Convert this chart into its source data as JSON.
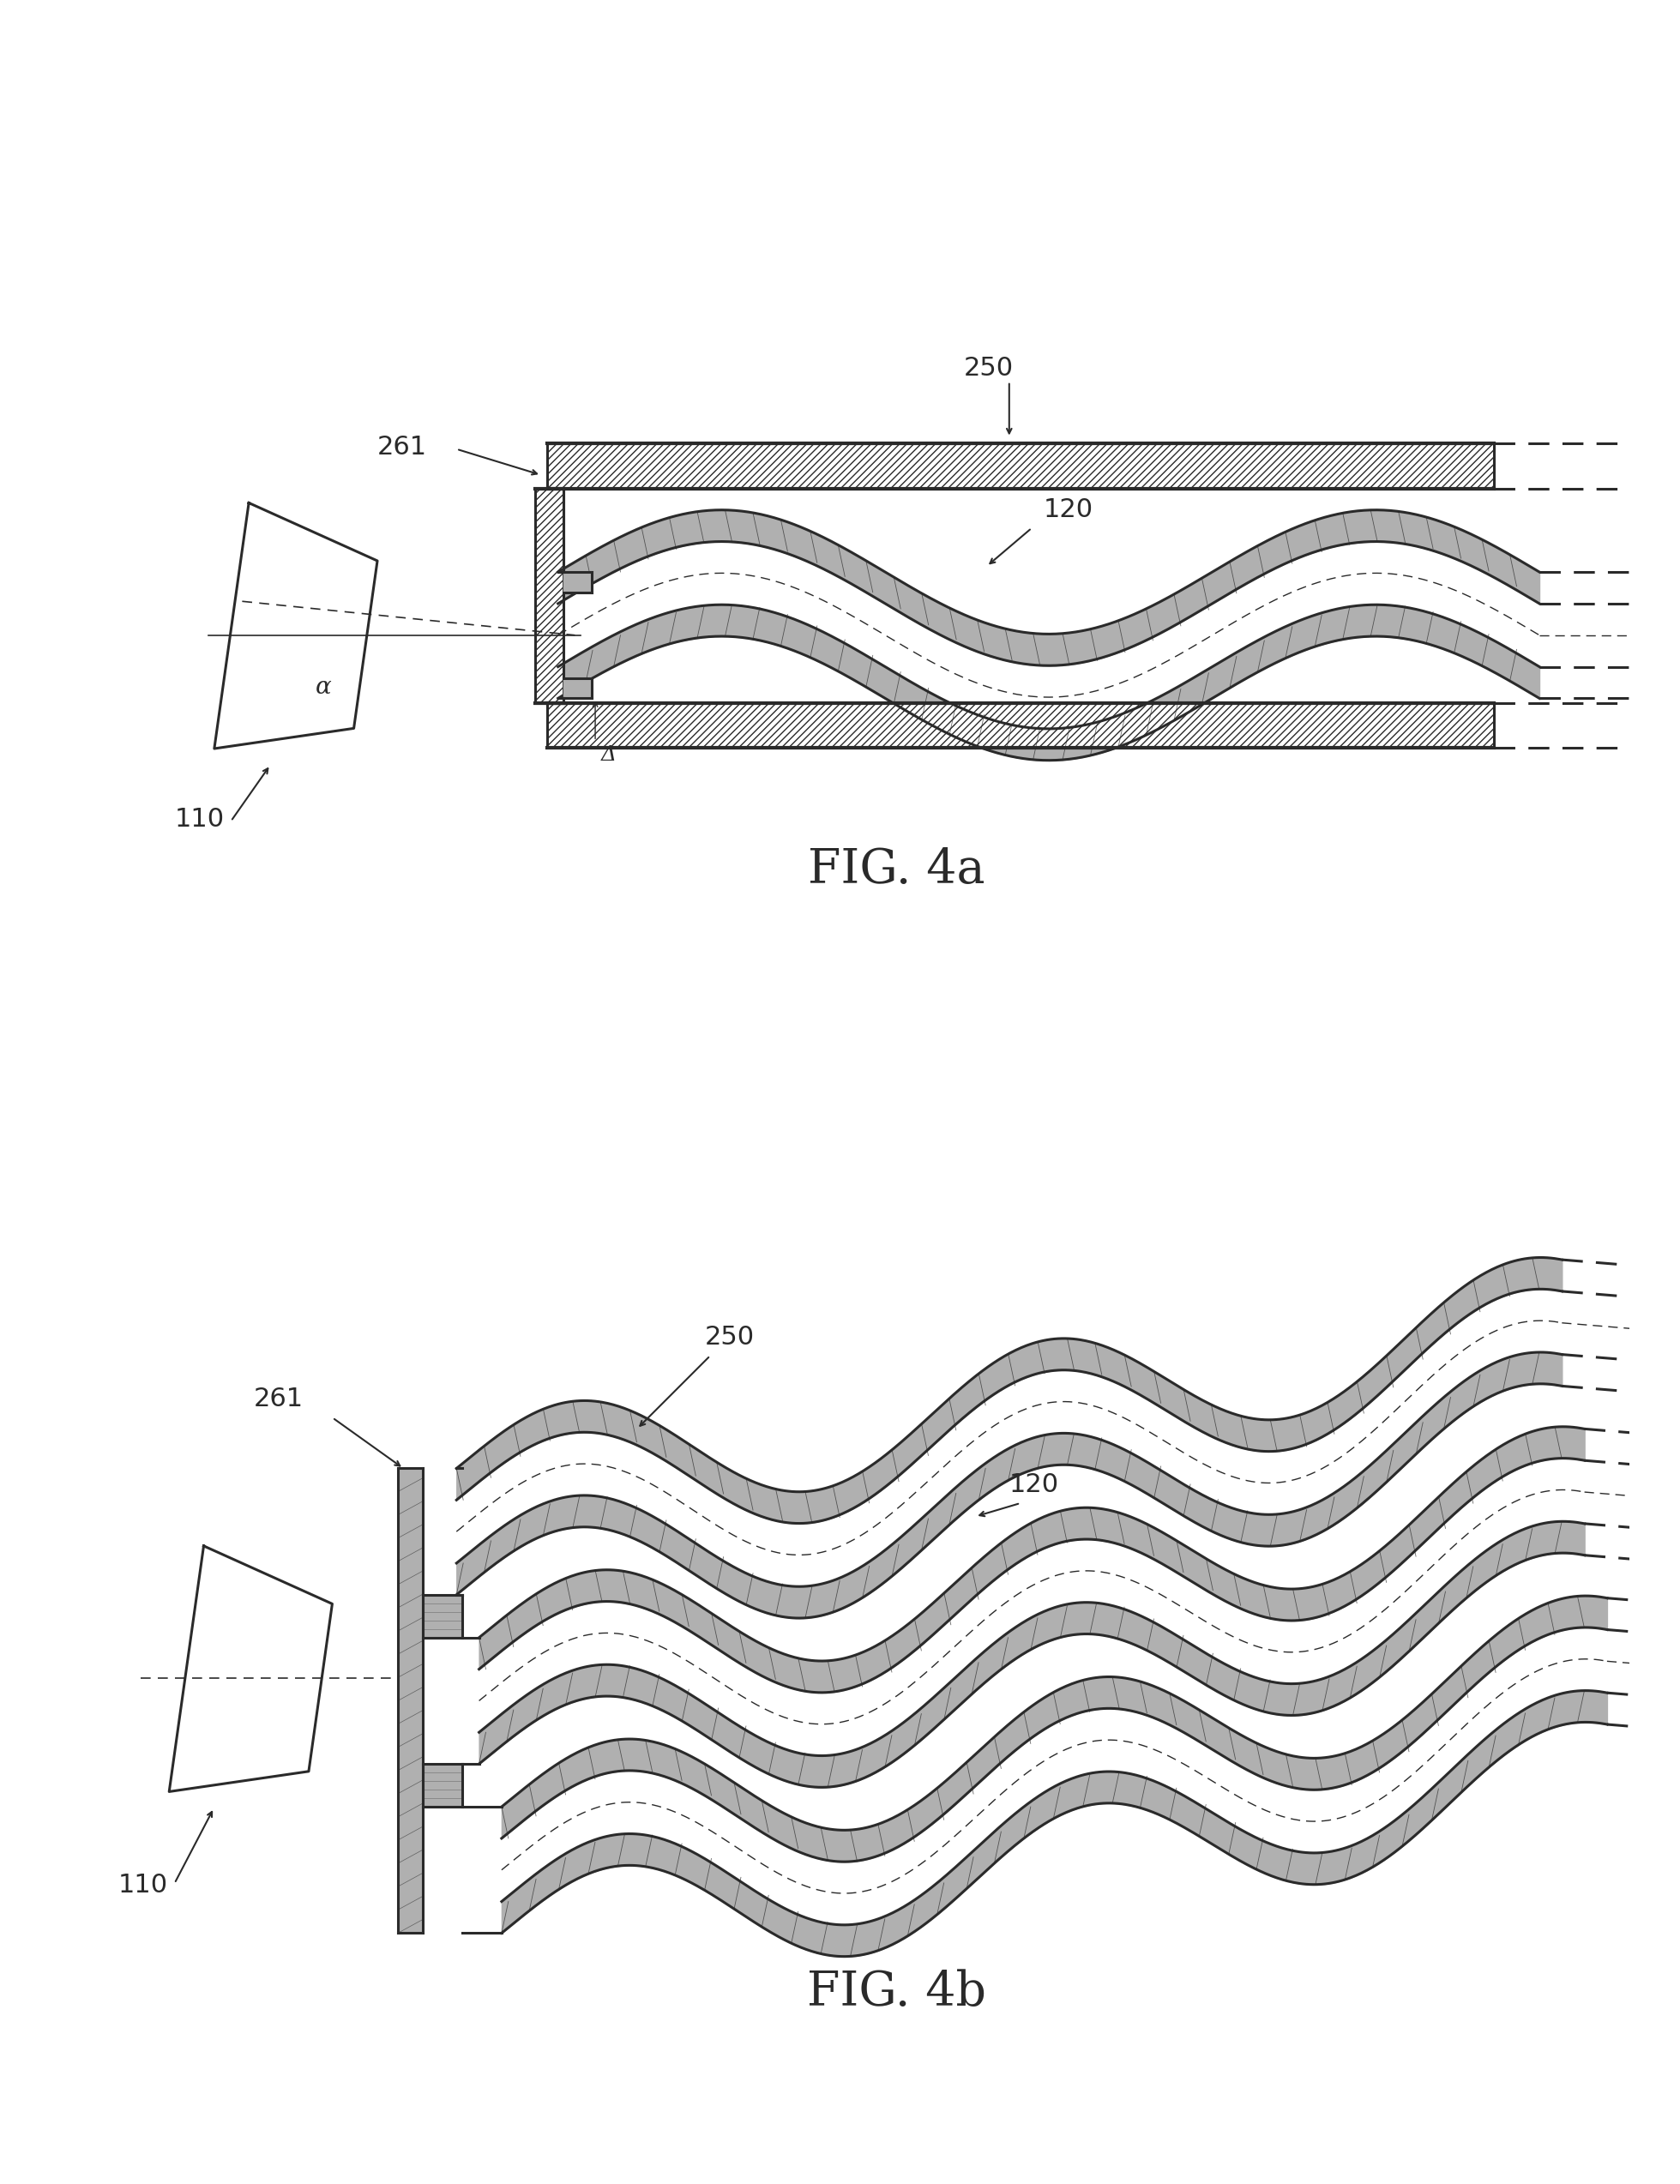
{
  "fig_width": 19.59,
  "fig_height": 25.47,
  "bg_color": "#ffffff",
  "line_color": "#2a2a2a",
  "fig4a_title": "FIG. 4a",
  "fig4b_title": "FIG. 4b",
  "label_110": "110",
  "label_120": "120",
  "label_250": "250",
  "label_261": "261",
  "label_alpha": "α",
  "label_delta": "Δ",
  "lw_main": 2.2,
  "lw_thick": 3.0,
  "wall_gray": "#b0b0b0",
  "plate_hatch": "////",
  "font_label": 22,
  "font_caption": 40
}
